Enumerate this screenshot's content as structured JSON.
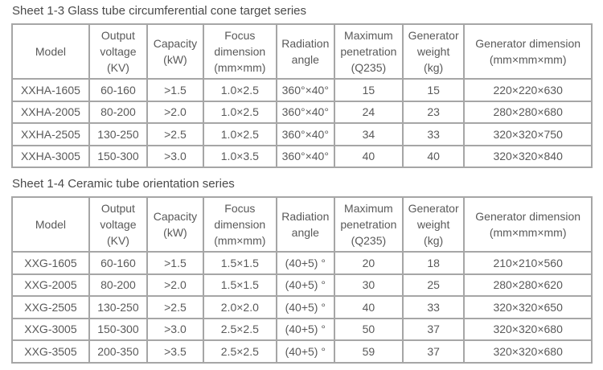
{
  "page": {
    "background": "#ffffff",
    "title_color": "#4a4a4a",
    "text_color": "#595959",
    "border_color": "#a6a6a6"
  },
  "tables": [
    {
      "title": "Sheet 1-3 Glass tube circumferential cone target series",
      "headers": [
        "Model",
        "Output\nvoltage\n(KV)",
        "Capacity\n(kW)",
        "Focus\ndimension\n(mm×mm)",
        "Radiation\nangle",
        "Maximum\npenetration\n(Q235)",
        "Generator\nweight\n(kg)",
        "Generator dimension\n(mm×mm×mm)"
      ],
      "rows": [
        [
          "XXHA-1605",
          "60-160",
          ">1.5",
          "1.0×2.5",
          "360°×40°",
          "15",
          "15",
          "220×220×630"
        ],
        [
          "XXHA-2005",
          "80-200",
          ">2.0",
          "1.0×2.5",
          "360°×40°",
          "24",
          "23",
          "280×280×680"
        ],
        [
          "XXHA-2505",
          "130-250",
          ">2.5",
          "1.0×2.5",
          "360°×40°",
          "34",
          "33",
          "320×320×750"
        ],
        [
          "XXHA-3005",
          "150-300",
          ">3.0",
          "1.0×3.5",
          "360°×40°",
          "40",
          "40",
          "320×320×840"
        ]
      ]
    },
    {
      "title": "Sheet 1-4 Ceramic tube orientation series",
      "headers": [
        "Model",
        "Output\nvoltage\n(KV)",
        "Capacity\n(kW)",
        "Focus\ndimension\n(mm×mm)",
        "Radiation\nangle",
        "Maximum\npenetration\n(Q235)",
        "Generator\nweight\n(kg)",
        "Generator dimension\n(mm×mm×mm)"
      ],
      "rows": [
        [
          "XXG-1605",
          "60-160",
          ">1.5",
          "1.5×1.5",
          "(40+5) °",
          "20",
          "18",
          "210×210×560"
        ],
        [
          "XXG-2005",
          "80-200",
          ">2.0",
          "1.5×1.5",
          "(40+5) °",
          "30",
          "25",
          "280×280×620"
        ],
        [
          "XXG-2505",
          "130-250",
          ">2.5",
          "2.0×2.0",
          "(40+5) °",
          "40",
          "33",
          "320×320×650"
        ],
        [
          "XXG-3005",
          "150-300",
          ">3.0",
          "2.5×2.5",
          "(40+5) °",
          "50",
          "37",
          "320×320×680"
        ],
        [
          "XXG-3505",
          "200-350",
          ">3.5",
          "2.5×2.5",
          "(40+5) °",
          "59",
          "37",
          "320×320×680"
        ]
      ]
    }
  ]
}
